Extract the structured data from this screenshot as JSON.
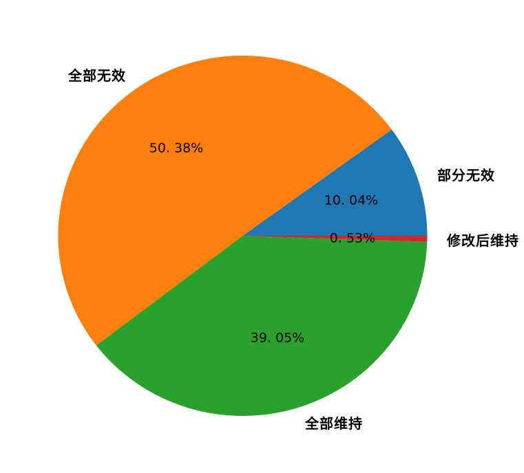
{
  "chart_data": {
    "type": "pie",
    "title": "",
    "background": "#ffffff",
    "text_color": "#000000",
    "start_angle_deg": 0,
    "direction": "counterclockwise",
    "label_distance": 1.1,
    "pct_distance": 0.6,
    "legend": "none",
    "slices": [
      {
        "label": "部分无效",
        "value": 10.04,
        "pct_text": "10. 04%",
        "color": "#1f77b4"
      },
      {
        "label": "全部无效",
        "value": 50.38,
        "pct_text": "50. 38%",
        "color": "#ff7f0e"
      },
      {
        "label": "全部维持",
        "value": 39.05,
        "pct_text": "39. 05%",
        "color": "#2ca02c"
      },
      {
        "label": "修改后维持",
        "value": 0.53,
        "pct_text": "0. 53%",
        "color": "#d62728"
      }
    ]
  }
}
